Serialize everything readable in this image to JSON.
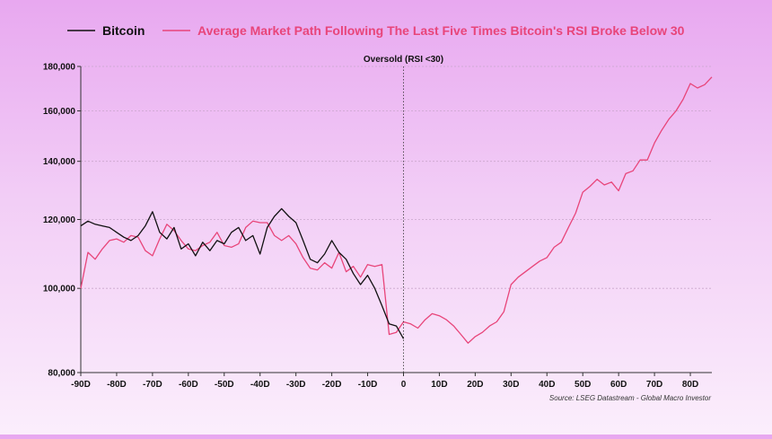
{
  "chart_data": {
    "type": "line",
    "title": "",
    "xlabel": "",
    "ylabel": "",
    "ylog": true,
    "xlim": [
      -90,
      86
    ],
    "ylim": [
      80000,
      180000
    ],
    "x_ticks": [
      -90,
      -80,
      -70,
      -60,
      -50,
      -40,
      -30,
      -20,
      -10,
      0,
      10,
      20,
      30,
      40,
      50,
      60,
      70,
      80
    ],
    "x_tick_labels": [
      "-90D",
      "-80D",
      "-70D",
      "-60D",
      "-50D",
      "-40D",
      "-30D",
      "-20D",
      "-10D",
      "0",
      "10D",
      "20D",
      "30D",
      "40D",
      "50D",
      "60D",
      "70D",
      "80D"
    ],
    "y_ticks": [
      80000,
      100000,
      120000,
      140000,
      160000,
      180000
    ],
    "y_tick_labels": [
      "80,000",
      "100,000",
      "120,000",
      "140,000",
      "160,000",
      "180,000"
    ],
    "grid": true,
    "legend_position": "top",
    "annotation": {
      "x": 0,
      "label": "Oversold (RSI <30)"
    },
    "source": "Source: LSEG Datastream - Global Macro Investor",
    "series": [
      {
        "name": "Bitcoin",
        "color": "#111111",
        "x": [
          -90,
          -88,
          -86,
          -84,
          -82,
          -80,
          -78,
          -76,
          -74,
          -72,
          -70,
          -68,
          -66,
          -64,
          -62,
          -60,
          -58,
          -56,
          -54,
          -52,
          -50,
          -48,
          -46,
          -44,
          -42,
          -40,
          -38,
          -36,
          -34,
          -32,
          -30,
          -28,
          -26,
          -24,
          -22,
          -20,
          -18,
          -16,
          -14,
          -12,
          -10,
          -8,
          -6,
          -4,
          -2,
          0
        ],
        "values": [
          118000,
          119500,
          118500,
          118000,
          117500,
          116000,
          114500,
          113500,
          115000,
          118000,
          122500,
          116000,
          114000,
          117500,
          111000,
          112500,
          109000,
          113000,
          110500,
          113500,
          112500,
          116000,
          117500,
          113500,
          115000,
          109500,
          117500,
          121000,
          123500,
          121000,
          119000,
          113500,
          108000,
          107000,
          109500,
          113500,
          110000,
          108000,
          104000,
          101000,
          103500,
          100000,
          95500,
          91000,
          90500,
          87500
        ]
      },
      {
        "name": "Average Market Path Following The Last Five Times Bitcoin's RSI Broke Below 30",
        "color": "#e8457a",
        "x": [
          -90,
          -88,
          -86,
          -84,
          -82,
          -80,
          -78,
          -76,
          -74,
          -72,
          -70,
          -68,
          -66,
          -64,
          -62,
          -60,
          -58,
          -56,
          -54,
          -52,
          -50,
          -48,
          -46,
          -44,
          -42,
          -40,
          -38,
          -36,
          -34,
          -32,
          -30,
          -28,
          -26,
          -24,
          -22,
          -20,
          -18,
          -16,
          -14,
          -12,
          -10,
          -8,
          -6,
          -4,
          -2,
          0,
          2,
          4,
          6,
          8,
          10,
          12,
          14,
          16,
          18,
          20,
          22,
          24,
          26,
          28,
          30,
          32,
          34,
          36,
          38,
          40,
          42,
          44,
          46,
          48,
          50,
          52,
          54,
          56,
          58,
          60,
          62,
          64,
          66,
          68,
          70,
          72,
          74,
          76,
          78,
          80,
          82,
          84,
          86
        ],
        "values": [
          100000,
          110000,
          108000,
          111000,
          113500,
          114000,
          113000,
          115000,
          114500,
          110500,
          109000,
          114000,
          118500,
          116500,
          113500,
          111000,
          110500,
          112000,
          113000,
          116000,
          112000,
          111500,
          112500,
          117500,
          119500,
          119000,
          119000,
          115000,
          113500,
          115000,
          112500,
          108500,
          105500,
          105000,
          107000,
          105500,
          110000,
          104500,
          106000,
          103000,
          106500,
          106000,
          106500,
          88500,
          89000,
          91500,
          91000,
          90000,
          92000,
          93500,
          93000,
          92000,
          90500,
          88500,
          86500,
          88000,
          89000,
          90500,
          91500,
          94000,
          101000,
          103000,
          104500,
          106000,
          107500,
          108500,
          111500,
          113000,
          117500,
          122000,
          129000,
          131000,
          133500,
          131500,
          132500,
          129500,
          135500,
          136500,
          140500,
          140500,
          147000,
          152000,
          156500,
          160000,
          165000,
          172000,
          170000,
          171500,
          175000
        ]
      }
    ]
  }
}
